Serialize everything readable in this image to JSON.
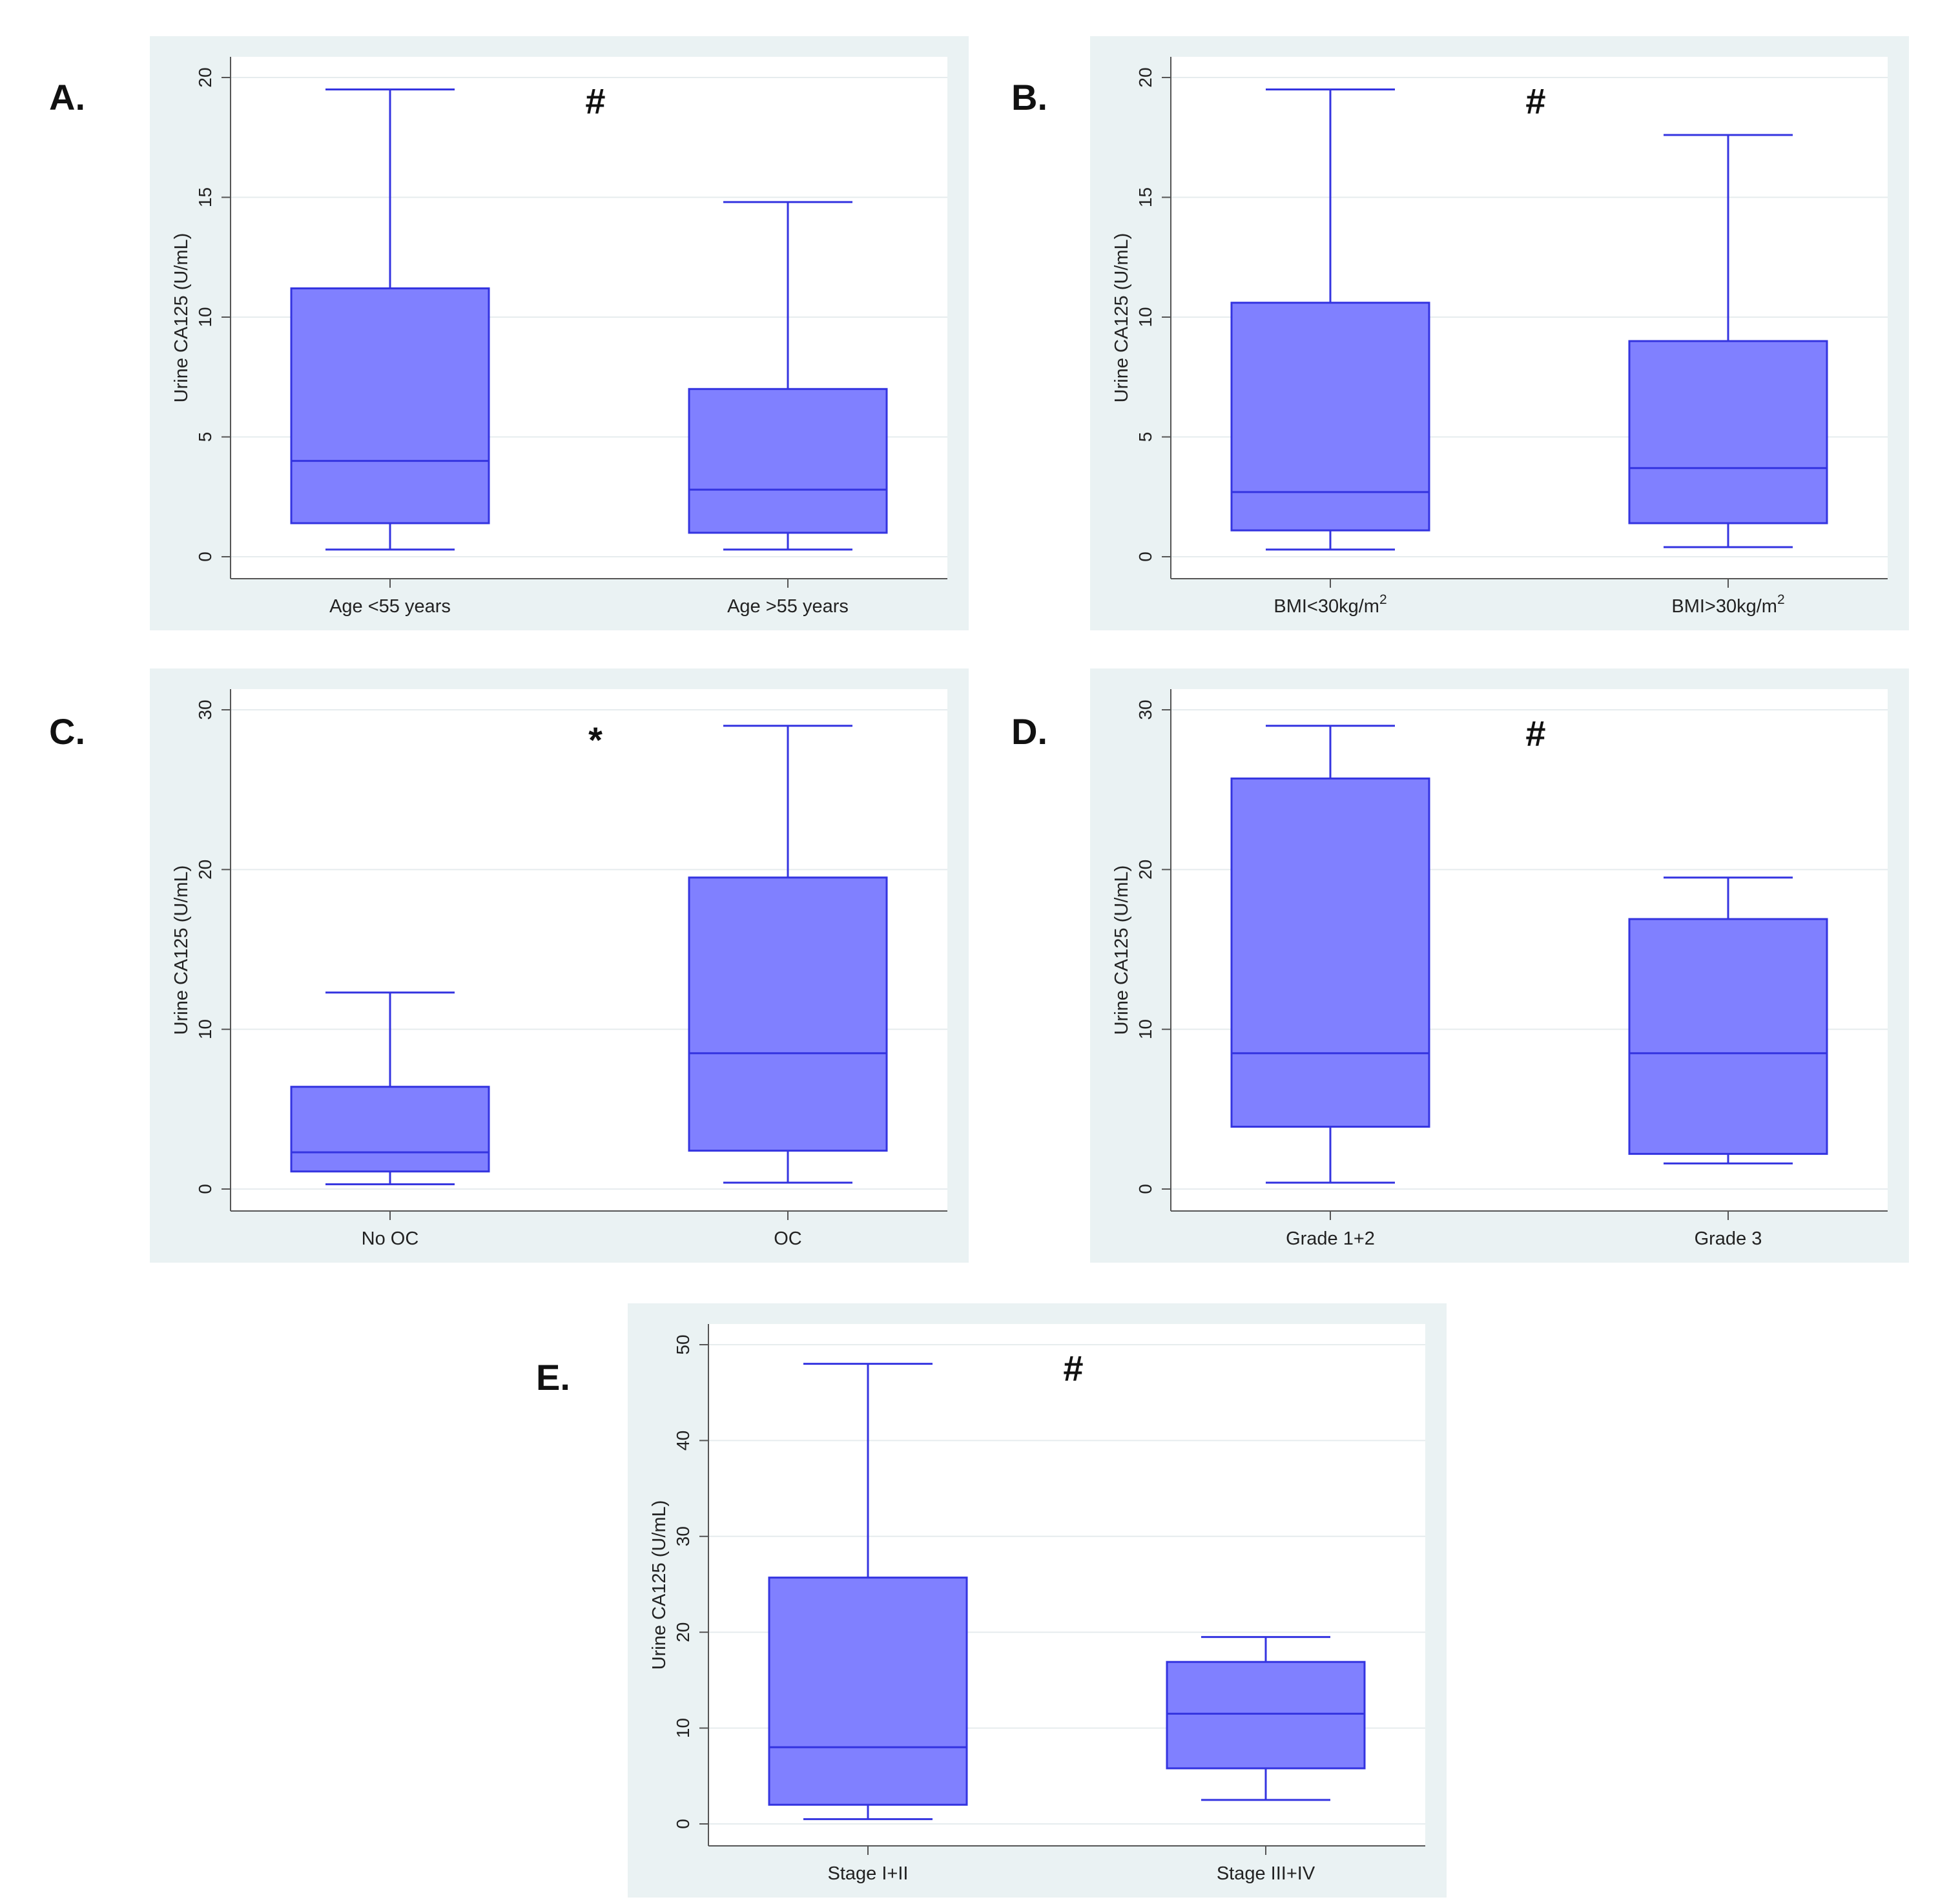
{
  "colors": {
    "panel_bg": "#eaf2f3",
    "plot_bg": "#ffffff",
    "box_fill": "#8080ff",
    "box_stroke": "#3434e0",
    "grid": "#e6ecee",
    "axis": "#555555",
    "text": "#222222"
  },
  "chart_data": [
    {
      "id": "A",
      "letter": "A.",
      "type": "box",
      "annotation": "#",
      "ylabel": "Urine CA125 (U/mL)",
      "ylim": [
        0,
        20
      ],
      "yticks": [
        0,
        5,
        10,
        15,
        20
      ],
      "categories": [
        "Age <55 years",
        "Age >55 years"
      ],
      "boxes": [
        {
          "min": 0.3,
          "q1": 1.4,
          "median": 4.0,
          "q3": 11.2,
          "max": 19.5
        },
        {
          "min": 0.3,
          "q1": 1.0,
          "median": 2.8,
          "q3": 7.0,
          "max": 14.8
        }
      ]
    },
    {
      "id": "B",
      "letter": "B.",
      "type": "box",
      "annotation": "#",
      "ylabel": "Urine CA125 (U/mL)",
      "ylim": [
        0,
        20
      ],
      "yticks": [
        0,
        5,
        10,
        15,
        20
      ],
      "categories": [
        "BMI<30kg/m",
        "BMI>30kg/m"
      ],
      "cat_superscripts": [
        "2",
        "2"
      ],
      "boxes": [
        {
          "min": 0.3,
          "q1": 1.1,
          "median": 2.7,
          "q3": 10.6,
          "max": 19.5
        },
        {
          "min": 0.4,
          "q1": 1.4,
          "median": 3.7,
          "q3": 9.0,
          "max": 17.6
        }
      ]
    },
    {
      "id": "C",
      "letter": "C.",
      "type": "box",
      "annotation": "*",
      "ylabel": "Urine CA125 (U/mL)",
      "ylim": [
        0,
        30
      ],
      "yticks": [
        0,
        10,
        20,
        30
      ],
      "categories": [
        "No OC",
        "OC"
      ],
      "boxes": [
        {
          "min": 0.3,
          "q1": 1.1,
          "median": 2.3,
          "q3": 6.4,
          "max": 12.3
        },
        {
          "min": 0.4,
          "q1": 2.4,
          "median": 8.5,
          "q3": 19.5,
          "max": 29.0
        }
      ]
    },
    {
      "id": "D",
      "letter": "D.",
      "type": "box",
      "annotation": "#",
      "ylabel": "Urine CA125 (U/mL)",
      "ylim": [
        0,
        30
      ],
      "yticks": [
        0,
        10,
        20,
        30
      ],
      "categories": [
        "Grade 1+2",
        "Grade 3"
      ],
      "boxes": [
        {
          "min": 0.4,
          "q1": 3.9,
          "median": 8.5,
          "q3": 25.7,
          "max": 29.0
        },
        {
          "min": 1.6,
          "q1": 2.2,
          "median": 8.5,
          "q3": 16.9,
          "max": 19.5
        }
      ]
    },
    {
      "id": "E",
      "letter": "E.",
      "type": "box",
      "annotation": "#",
      "ylabel": "Urine CA125 (U/mL)",
      "ylim": [
        0,
        50
      ],
      "yticks": [
        0,
        10,
        20,
        30,
        40,
        50
      ],
      "categories": [
        "Stage I+II",
        "Stage III+IV"
      ],
      "boxes": [
        {
          "min": 0.5,
          "q1": 2.0,
          "median": 8.0,
          "q3": 25.7,
          "max": 48.0
        },
        {
          "min": 2.5,
          "q1": 5.8,
          "median": 11.5,
          "q3": 16.9,
          "max": 19.5
        }
      ]
    }
  ]
}
